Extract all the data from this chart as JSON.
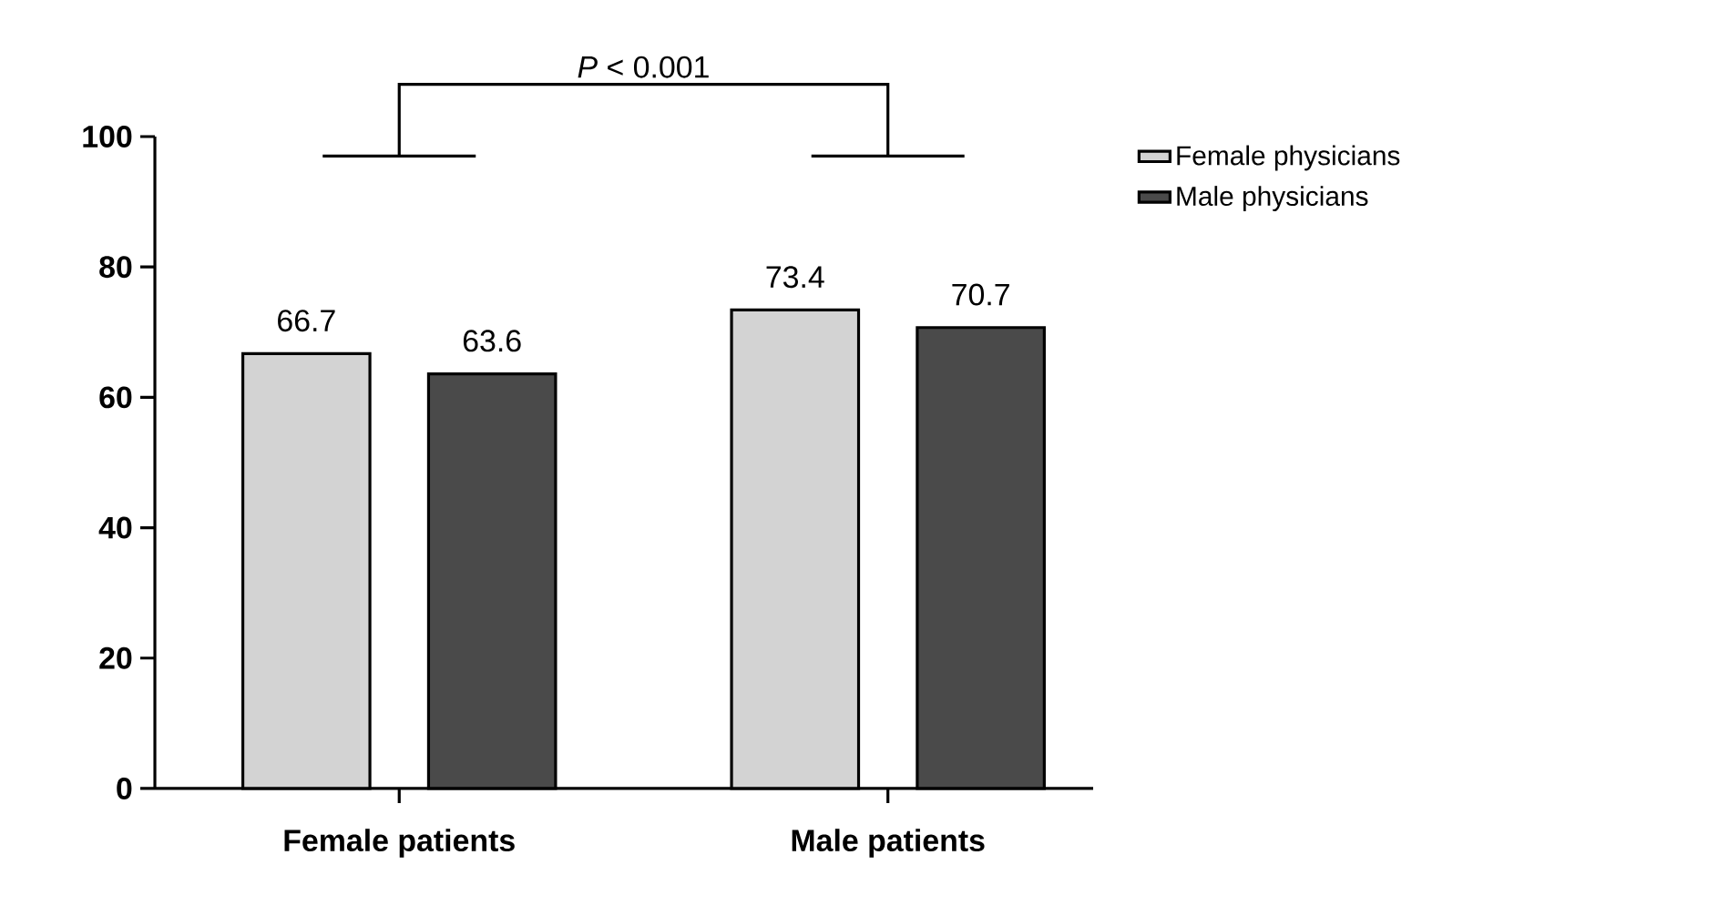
{
  "chart_data": {
    "type": "bar",
    "categories": [
      "Female patients",
      "Male patients"
    ],
    "series": [
      {
        "name": "Female physicians",
        "color": "#d3d3d3",
        "values": [
          66.7,
          73.4
        ]
      },
      {
        "name": "Male physicians",
        "color": "#4a4a4a",
        "values": [
          63.6,
          70.7
        ]
      }
    ],
    "ylim": [
      0,
      100
    ],
    "yticks": [
      0,
      20,
      40,
      60,
      80,
      100
    ],
    "data_labels": true,
    "legend": "top right",
    "grid": false,
    "annotations": [
      "*P* < 0.001"
    ]
  }
}
